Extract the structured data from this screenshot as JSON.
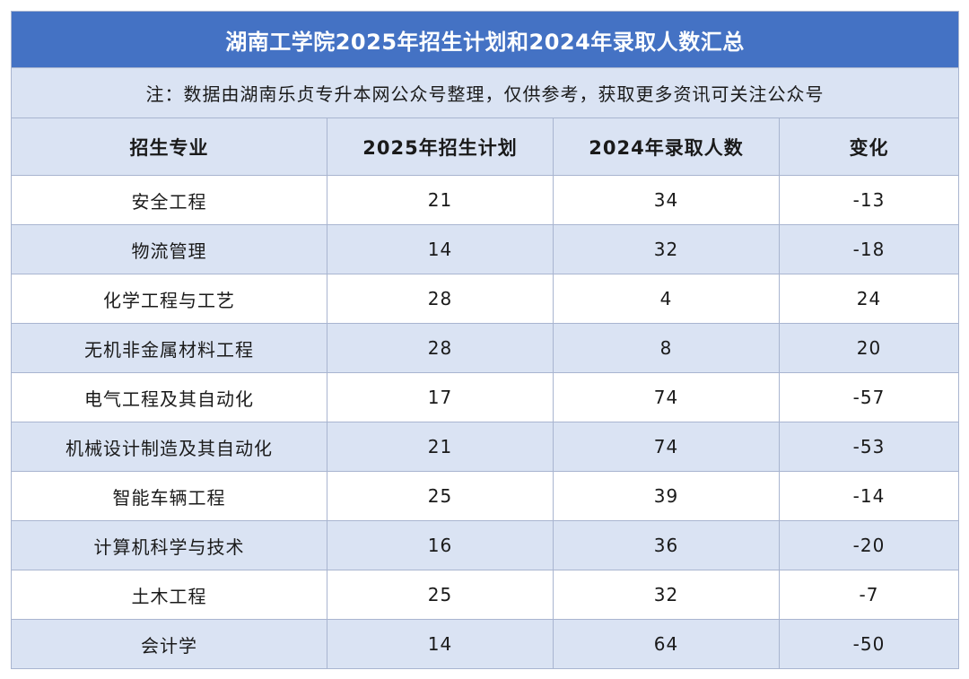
{
  "title": "湖南工学院2025年招生计划和2024年录取人数汇总",
  "note": "注：数据由湖南乐贞专升本网公众号整理，仅供参考，获取更多资讯可关注公众号",
  "headers": [
    "招生专业",
    "2025年招生计划",
    "2024年录取人数",
    "变化"
  ],
  "rows": [
    {
      "major": "安全工程",
      "plan2025": "21",
      "admit2024": "34",
      "change": "-13"
    },
    {
      "major": "物流管理",
      "plan2025": "14",
      "admit2024": "32",
      "change": "-18"
    },
    {
      "major": "化学工程与工艺",
      "plan2025": "28",
      "admit2024": "4",
      "change": "24"
    },
    {
      "major": "无机非金属材料工程",
      "plan2025": "28",
      "admit2024": "8",
      "change": "20"
    },
    {
      "major": "电气工程及其自动化",
      "plan2025": "17",
      "admit2024": "74",
      "change": "-57"
    },
    {
      "major": "机械设计制造及其自动化",
      "plan2025": "21",
      "admit2024": "74",
      "change": "-53"
    },
    {
      "major": "智能车辆工程",
      "plan2025": "25",
      "admit2024": "39",
      "change": "-14"
    },
    {
      "major": "计算机科学与技术",
      "plan2025": "16",
      "admit2024": "36",
      "change": "-20"
    },
    {
      "major": "土木工程",
      "plan2025": "25",
      "admit2024": "32",
      "change": "-7"
    },
    {
      "major": "会计学",
      "plan2025": "14",
      "admit2024": "64",
      "change": "-50"
    }
  ],
  "colors": {
    "header_blue": "#4472c4",
    "band_light": "#dae3f3",
    "grid": "#a9b5d0"
  }
}
